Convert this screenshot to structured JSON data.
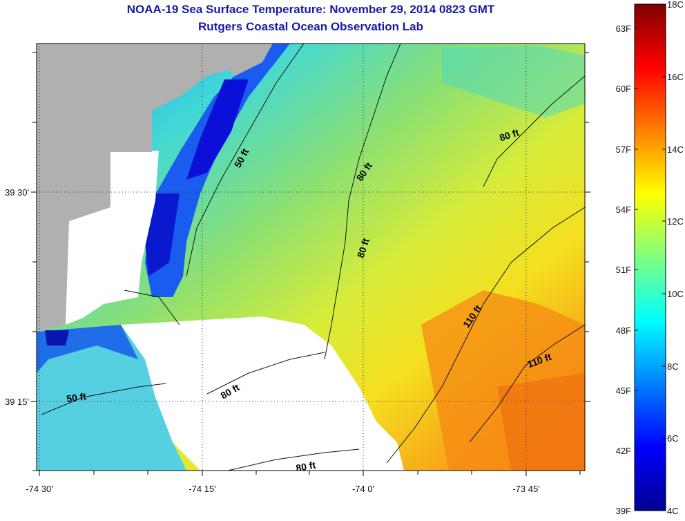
{
  "title": "NOAA-19 Sea Surface Temperature:  November 29, 2014 0823 GMT",
  "subtitle": "Rutgers Coastal Ocean Observation Lab",
  "x_ticks": [
    "-74 30'",
    "-74 15'",
    "-74 0'",
    "-73 45'"
  ],
  "y_ticks": [
    "39 30'",
    "39 15'"
  ],
  "contours": [
    "50 ft",
    "50 ft",
    "80 ft",
    "80 ft",
    "80 ft",
    "80 ft",
    "80 ft",
    "110 ft",
    "110 ft"
  ],
  "colorbar": {
    "fahrenheit_labels": [
      "63F",
      "60F",
      "57F",
      "54F",
      "51F",
      "48F",
      "45F",
      "42F",
      "39F"
    ],
    "celsius_labels": [
      "18C",
      "16C",
      "14C",
      "12C",
      "10C",
      "8C",
      "6C",
      "4C"
    ],
    "range_c": [
      4,
      18
    ],
    "colormap": "jet"
  },
  "colors": {
    "title": "#1a1aa8",
    "land": "#b0b0b0",
    "no_data": "#ffffff",
    "grid": "#333333"
  }
}
